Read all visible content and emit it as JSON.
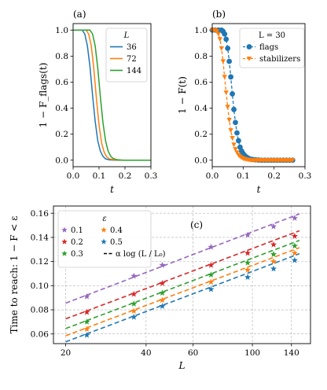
{
  "chart_data": [
    {
      "type": "line",
      "panel_label": "(a)",
      "xlabel": "t",
      "ylabel": "1 − F_flags(t)",
      "xlim": [
        0,
        0.3
      ],
      "ylim": [
        -0.05,
        1.05
      ],
      "xticks": [
        "0.0",
        "0.1",
        "0.2",
        "0.3"
      ],
      "yticks": [
        "0.0",
        "0.2",
        "0.4",
        "0.6",
        "0.8",
        "1.0"
      ],
      "grid": false,
      "legend_title": "L",
      "legend_position": "top-right",
      "series": [
        {
          "name": "36",
          "color": "#1f77b4",
          "x": [
            0,
            0.035,
            0.045,
            0.055,
            0.065,
            0.075,
            0.085,
            0.095,
            0.105,
            0.115,
            0.125,
            0.14,
            0.16,
            0.2,
            0.3
          ],
          "y": [
            1.0,
            1.0,
            0.97,
            0.88,
            0.72,
            0.5,
            0.3,
            0.15,
            0.07,
            0.03,
            0.01,
            0.003,
            0.0,
            0.0,
            0.0
          ]
        },
        {
          "name": "72",
          "color": "#ff7f0e",
          "x": [
            0,
            0.05,
            0.06,
            0.07,
            0.08,
            0.09,
            0.1,
            0.11,
            0.12,
            0.13,
            0.14,
            0.16,
            0.2,
            0.3
          ],
          "y": [
            1.0,
            1.0,
            0.97,
            0.88,
            0.7,
            0.47,
            0.27,
            0.13,
            0.06,
            0.025,
            0.01,
            0.002,
            0.0,
            0.0
          ]
        },
        {
          "name": "144",
          "color": "#2ca02c",
          "x": [
            0,
            0.065,
            0.075,
            0.085,
            0.095,
            0.105,
            0.115,
            0.125,
            0.135,
            0.145,
            0.155,
            0.17,
            0.19,
            0.22,
            0.3
          ],
          "y": [
            1.0,
            1.0,
            0.97,
            0.88,
            0.71,
            0.49,
            0.29,
            0.15,
            0.07,
            0.03,
            0.012,
            0.004,
            0.0,
            0.0,
            0.0
          ]
        }
      ]
    },
    {
      "type": "scatter",
      "panel_label": "(b)",
      "xlabel": "t",
      "ylabel": "1 − F(t)",
      "xlim": [
        0,
        0.3
      ],
      "ylim": [
        -0.05,
        1.05
      ],
      "xticks": [
        "0.0",
        "0.1",
        "0.2",
        "0.3"
      ],
      "yticks": [
        "0.0",
        "0.2",
        "0.4",
        "0.6",
        "0.8",
        "1.0"
      ],
      "grid": false,
      "legend_title": "L = 30",
      "legend_position": "top-right",
      "series": [
        {
          "name": "flags",
          "color": "#1f77b4",
          "marker": "circle",
          "x": [
            0.0,
            0.01,
            0.02,
            0.03,
            0.035,
            0.04,
            0.045,
            0.05,
            0.055,
            0.06,
            0.065,
            0.07,
            0.075,
            0.08,
            0.085,
            0.09,
            0.095,
            0.1,
            0.105,
            0.11,
            0.115,
            0.12,
            0.13,
            0.14,
            0.15,
            0.16,
            0.17,
            0.18,
            0.19,
            0.2,
            0.21,
            0.22,
            0.23,
            0.24,
            0.25,
            0.26
          ],
          "y": [
            1.0,
            1.0,
            1.0,
            1.0,
            0.99,
            0.97,
            0.93,
            0.86,
            0.76,
            0.64,
            0.51,
            0.39,
            0.29,
            0.21,
            0.15,
            0.1,
            0.07,
            0.05,
            0.035,
            0.025,
            0.017,
            0.012,
            0.006,
            0.003,
            0.001,
            0.0,
            0.0,
            0.0,
            0.0,
            0.0,
            0.0,
            0.0,
            0.0,
            0.0,
            0.0,
            0.0
          ]
        },
        {
          "name": "stabilizers",
          "color": "#ff7f0e",
          "marker": "triangle",
          "x": [
            0.0,
            0.005,
            0.01,
            0.015,
            0.02,
            0.025,
            0.03,
            0.035,
            0.04,
            0.045,
            0.05,
            0.055,
            0.06,
            0.065,
            0.07,
            0.075,
            0.08,
            0.085,
            0.09,
            0.095,
            0.1,
            0.105,
            0.11,
            0.115,
            0.12,
            0.125,
            0.13,
            0.135,
            0.14,
            0.145,
            0.15,
            0.155,
            0.16,
            0.165,
            0.17,
            0.175,
            0.18,
            0.185,
            0.19,
            0.195,
            0.2,
            0.205,
            0.21,
            0.215,
            0.22,
            0.225,
            0.23,
            0.235,
            0.24,
            0.245,
            0.25,
            0.255,
            0.26
          ],
          "y": [
            1.0,
            1.0,
            1.0,
            0.99,
            0.97,
            0.93,
            0.86,
            0.76,
            0.64,
            0.52,
            0.41,
            0.31,
            0.23,
            0.17,
            0.12,
            0.085,
            0.06,
            0.04,
            0.028,
            0.02,
            0.013,
            0.009,
            0.006,
            0.004,
            0.002,
            0.0,
            0.0,
            0.0,
            0.0,
            0.0,
            0.0,
            0.0,
            0.0,
            0.0,
            0.0,
            0.0,
            0.0,
            0.0,
            0.0,
            0.0,
            0.0,
            0.0,
            0.0,
            0.0,
            0.0,
            0.0,
            0.0,
            0.0,
            0.0,
            0.0,
            0.0,
            0.0,
            0.0
          ]
        }
      ]
    },
    {
      "type": "scatter",
      "panel_label": "(c)",
      "xlabel": "L",
      "ylabel": "Time to reach: 1 − F < ε",
      "xscale": "log",
      "xlim": [
        18,
        165
      ],
      "ylim": [
        0.052,
        0.166
      ],
      "xticks": [
        "20",
        "40",
        "60",
        "100",
        "140"
      ],
      "xtick_values": [
        20,
        40,
        60,
        100,
        140
      ],
      "yticks": [
        "0.06",
        "0.08",
        "0.10",
        "0.12",
        "0.14",
        "0.16"
      ],
      "ytick_values": [
        0.06,
        0.08,
        0.1,
        0.12,
        0.14,
        0.16
      ],
      "grid": true,
      "legend_title": "ε",
      "legend_position": "top-left",
      "fit_label": "α log (L / L₀)",
      "x": [
        24,
        36,
        46,
        70,
        96,
        120,
        144
      ],
      "series": [
        {
          "name": "0.1",
          "color": "#9467bd",
          "marker": "star",
          "values": [
            0.091,
            0.108,
            0.117,
            0.132,
            0.142,
            0.149,
            0.156
          ],
          "fit": [
            [
              20,
              0.0855
            ],
            [
              150,
              0.1595
            ]
          ]
        },
        {
          "name": "0.2",
          "color": "#d62728",
          "marker": "star",
          "values": [
            0.078,
            0.093,
            0.102,
            0.117,
            0.127,
            0.134,
            0.141
          ],
          "fit": [
            [
              20,
              0.0725
            ],
            [
              150,
              0.1455
            ]
          ]
        },
        {
          "name": "0.3",
          "color": "#2ca02c",
          "marker": "star",
          "values": [
            0.07,
            0.085,
            0.094,
            0.109,
            0.119,
            0.126,
            0.133
          ],
          "fit": [
            [
              20,
              0.0645
            ],
            [
              150,
              0.1375
            ]
          ]
        },
        {
          "name": "0.4",
          "color": "#ff7f0e",
          "marker": "star",
          "values": [
            0.064,
            0.079,
            0.088,
            0.103,
            0.113,
            0.12,
            0.127
          ],
          "fit": [
            [
              20,
              0.0585
            ],
            [
              150,
              0.1315
            ]
          ]
        },
        {
          "name": "0.5",
          "color": "#1f77b4",
          "marker": "star",
          "values": [
            0.059,
            0.074,
            0.083,
            0.097,
            0.107,
            0.114,
            0.121
          ],
          "fit": [
            [
              20,
              0.0535
            ],
            [
              150,
              0.1265
            ]
          ]
        }
      ]
    }
  ]
}
